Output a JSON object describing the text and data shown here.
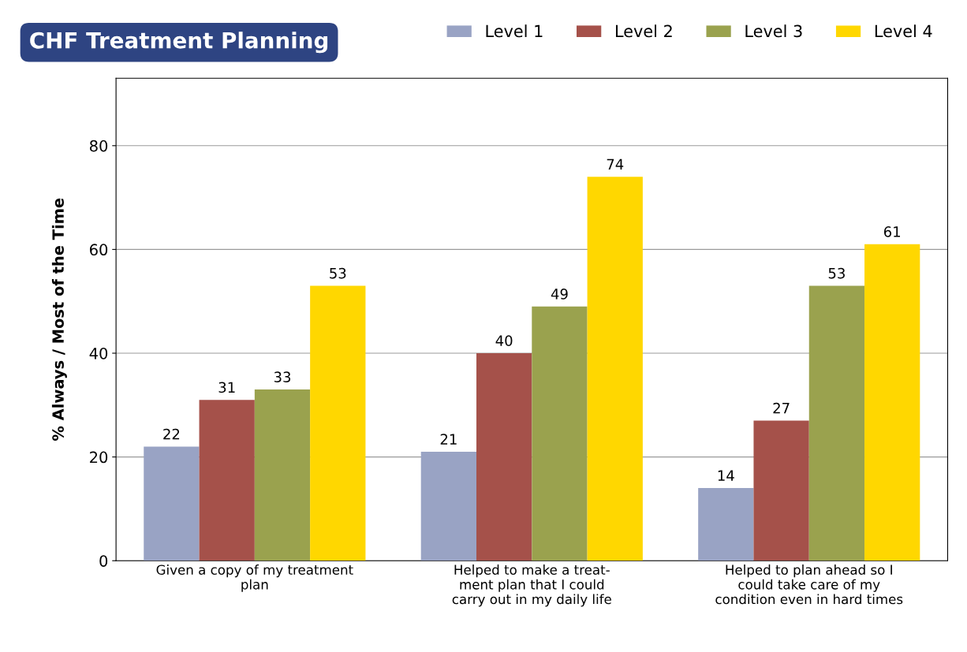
{
  "chart_data": {
    "type": "bar",
    "title": "CHF Treatment Planning",
    "ylabel": "% Always / Most of the Time",
    "categories": [
      "Given a copy of my treatment\nplan",
      "Helped to make a treat-\nment plan that I could\ncarry out in my daily life",
      "Helped to plan ahead so I\ncould take care of my\ncondition even in hard times"
    ],
    "series": [
      {
        "name": "Level 1",
        "color": "#99a3c4",
        "values": [
          22,
          21,
          14
        ]
      },
      {
        "name": "Level 2",
        "color": "#a5514a",
        "values": [
          31,
          40,
          27
        ]
      },
      {
        "name": "Level 3",
        "color": "#9aa24e",
        "values": [
          33,
          49,
          53
        ]
      },
      {
        "name": "Level 4",
        "color": "#ffd700",
        "values": [
          53,
          74,
          61
        ]
      }
    ],
    "ylim": [
      0,
      93
    ],
    "yticks": [
      0,
      20,
      40,
      60,
      80
    ],
    "grid": "y",
    "legend": "top right",
    "data_labels": true
  }
}
